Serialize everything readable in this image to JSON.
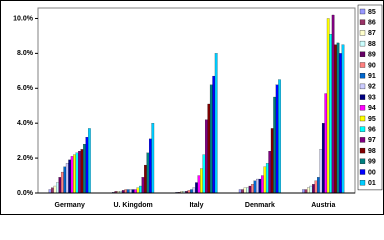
{
  "chart_data": {
    "type": "bar",
    "categories": [
      "Germany",
      "U. Kingdom",
      "Italy",
      "Denmark",
      "Austria"
    ],
    "ylim": [
      0,
      10.6
    ],
    "yticks": [
      {
        "value": 0,
        "label": "0.0%"
      },
      {
        "value": 2,
        "label": "2.0%"
      },
      {
        "value": 4,
        "label": "4.0%"
      },
      {
        "value": 6,
        "label": "6.0%"
      },
      {
        "value": 8,
        "label": "8.0%"
      },
      {
        "value": 10,
        "label": "10.0%"
      }
    ],
    "grid": false,
    "legend": "right",
    "series": [
      {
        "name": "85",
        "color": "#9999ff",
        "values": [
          0.2,
          0.05,
          0.05,
          0.2,
          0.2
        ]
      },
      {
        "name": "86",
        "color": "#993366",
        "values": [
          0.3,
          0.1,
          0.05,
          0.2,
          0.2
        ]
      },
      {
        "name": "87",
        "color": "#ffffcc",
        "values": [
          0.4,
          0.1,
          0.1,
          0.3,
          0.3
        ]
      },
      {
        "name": "88",
        "color": "#ccffff",
        "values": [
          0.6,
          0.1,
          0.1,
          0.3,
          0.4
        ]
      },
      {
        "name": "89",
        "color": "#660066",
        "values": [
          0.9,
          0.15,
          0.1,
          0.4,
          0.5
        ]
      },
      {
        "name": "90",
        "color": "#ff8080",
        "values": [
          1.2,
          0.2,
          0.15,
          0.5,
          0.7
        ]
      },
      {
        "name": "91",
        "color": "#0066cc",
        "values": [
          1.5,
          0.2,
          0.2,
          0.7,
          0.9
        ]
      },
      {
        "name": "92",
        "color": "#ccccff",
        "values": [
          1.7,
          0.2,
          0.3,
          0.8,
          2.5
        ]
      },
      {
        "name": "93",
        "color": "#000080",
        "values": [
          1.9,
          0.2,
          0.6,
          0.8,
          4.0
        ]
      },
      {
        "name": "94",
        "color": "#ff00ff",
        "values": [
          2.1,
          0.2,
          1.0,
          1.0,
          5.7
        ]
      },
      {
        "name": "95",
        "color": "#ffff00",
        "values": [
          2.2,
          0.3,
          1.4,
          1.5,
          10.0
        ]
      },
      {
        "name": "96",
        "color": "#00ffff",
        "values": [
          2.3,
          0.4,
          2.2,
          1.7,
          9.1
        ]
      },
      {
        "name": "97",
        "color": "#800080",
        "values": [
          2.4,
          0.9,
          4.2,
          2.4,
          10.2
        ]
      },
      {
        "name": "98",
        "color": "#800000",
        "values": [
          2.5,
          1.6,
          5.1,
          3.7,
          8.5
        ]
      },
      {
        "name": "99",
        "color": "#008080",
        "values": [
          2.8,
          2.3,
          6.2,
          5.5,
          8.6
        ]
      },
      {
        "name": "00",
        "color": "#0000ff",
        "values": [
          3.2,
          3.1,
          6.7,
          6.2,
          8.0
        ]
      },
      {
        "name": "01",
        "color": "#00ccff",
        "values": [
          3.7,
          4.0,
          8.0,
          6.5,
          8.5
        ]
      }
    ]
  }
}
